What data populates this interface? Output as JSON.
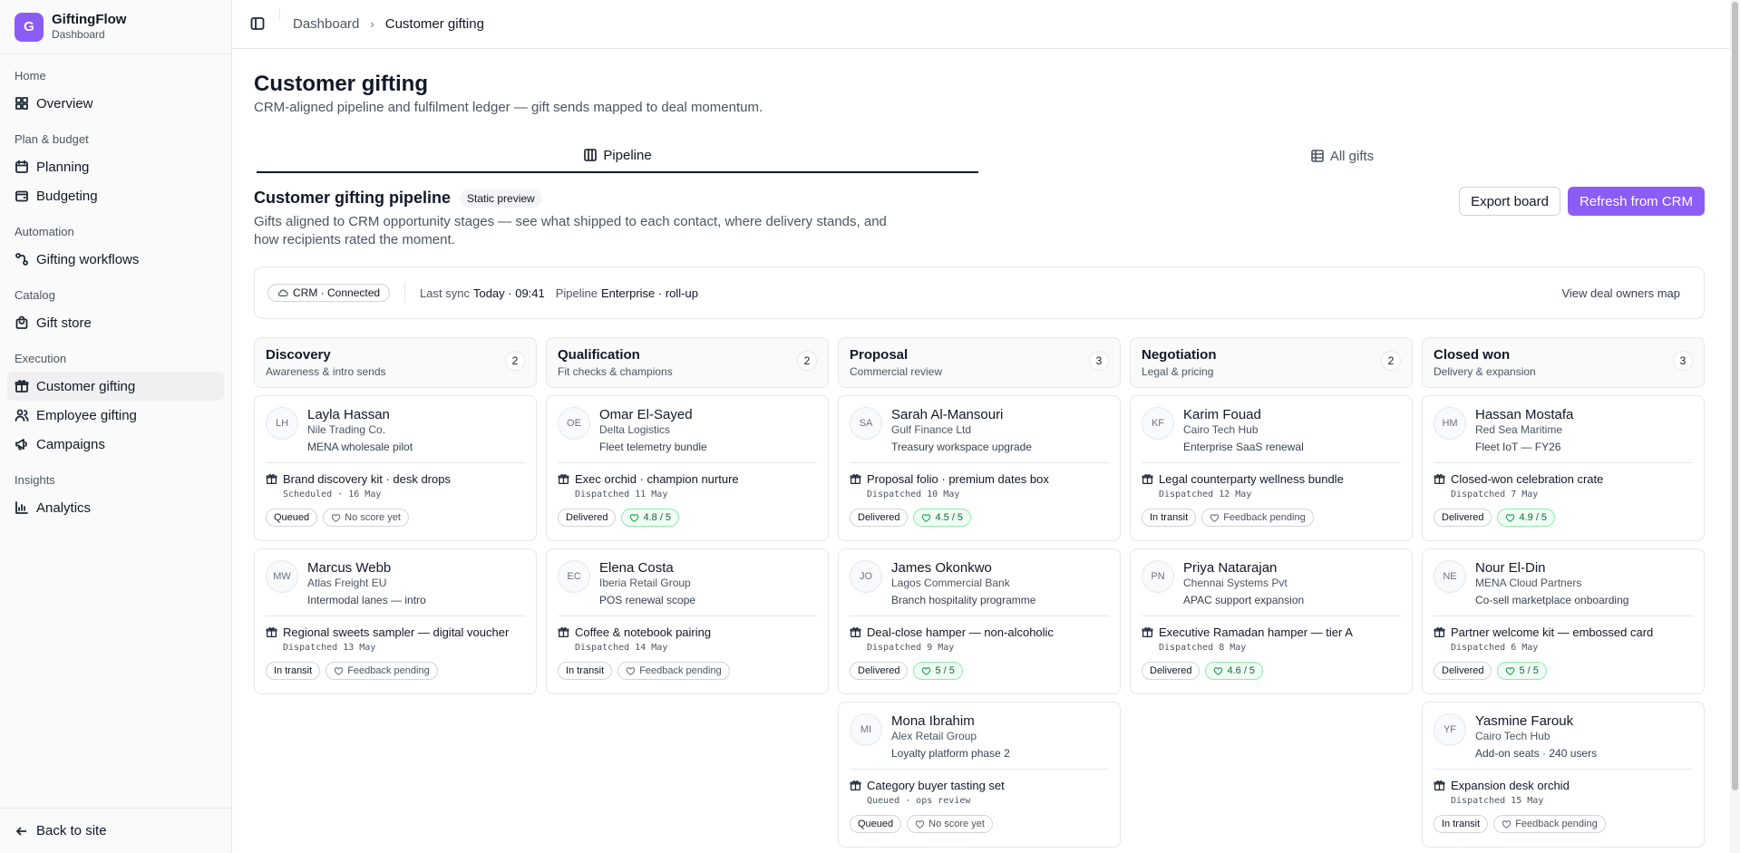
{
  "app": {
    "logo_letter": "G",
    "name": "GiftingFlow",
    "subtitle": "Dashboard"
  },
  "sidebar": {
    "sections": [
      {
        "heading": "Home",
        "items": [
          {
            "label": "Overview",
            "icon": "grid-icon"
          }
        ]
      },
      {
        "heading": "Plan & budget",
        "items": [
          {
            "label": "Planning",
            "icon": "calendar-icon"
          },
          {
            "label": "Budgeting",
            "icon": "wallet-icon"
          }
        ]
      },
      {
        "heading": "Automation",
        "items": [
          {
            "label": "Gifting workflows",
            "icon": "workflow-icon"
          }
        ]
      },
      {
        "heading": "Catalog",
        "items": [
          {
            "label": "Gift store",
            "icon": "shopping-bag-icon"
          }
        ]
      },
      {
        "heading": "Execution",
        "items": [
          {
            "label": "Customer gifting",
            "icon": "gift-icon",
            "active": true
          },
          {
            "label": "Employee gifting",
            "icon": "users-icon"
          },
          {
            "label": "Campaigns",
            "icon": "megaphone-icon"
          }
        ]
      },
      {
        "heading": "Insights",
        "items": [
          {
            "label": "Analytics",
            "icon": "chart-icon"
          }
        ]
      }
    ],
    "back_label": "Back to site"
  },
  "breadcrumb": {
    "root": "Dashboard",
    "current": "Customer gifting"
  },
  "page": {
    "title": "Customer gifting",
    "subtitle": "CRM-aligned pipeline and fulfilment ledger — gift sends mapped to deal momentum."
  },
  "tabs": [
    {
      "label": "Pipeline",
      "icon": "columns-icon",
      "active": true
    },
    {
      "label": "All gifts",
      "icon": "table-icon",
      "active": false
    }
  ],
  "section": {
    "title": "Customer gifting pipeline",
    "pill": "Static preview",
    "desc": "Gifts aligned to CRM opportunity stages — see what shipped to each contact, where delivery stands, and how recipients rated the moment.",
    "export_label": "Export board",
    "refresh_label": "Refresh from CRM"
  },
  "status": {
    "crm": "CRM · Connected",
    "sync_label": "Last sync",
    "sync_value": "Today · 09:41",
    "pipeline_label": "Pipeline",
    "pipeline_value": "Enterprise · roll-up",
    "map_link": "View deal owners map"
  },
  "columns": [
    {
      "name": "Discovery",
      "sub": "Awareness & intro sends",
      "count": "2",
      "cards": [
        {
          "initials": "LH",
          "name": "Layla Hassan",
          "company": "Nile Trading Co.",
          "note": "MENA wholesale pilot",
          "gift": "Brand discovery kit · desk drops",
          "dispatch": "Scheduled · 16 May",
          "status": "Queued",
          "score": "No score yet",
          "scored": false
        },
        {
          "initials": "MW",
          "name": "Marcus Webb",
          "company": "Atlas Freight EU",
          "note": "Intermodal lanes — intro",
          "gift": "Regional sweets sampler — digital voucher",
          "dispatch": "Dispatched 13 May",
          "status": "In transit",
          "score": "Feedback pending",
          "scored": false
        }
      ]
    },
    {
      "name": "Qualification",
      "sub": "Fit checks & champions",
      "count": "2",
      "cards": [
        {
          "initials": "OE",
          "name": "Omar El-Sayed",
          "company": "Delta Logistics",
          "note": "Fleet telemetry bundle",
          "gift": "Exec orchid · champion nurture",
          "dispatch": "Dispatched 11 May",
          "status": "Delivered",
          "score": "4.8 / 5",
          "scored": true
        },
        {
          "initials": "EC",
          "name": "Elena Costa",
          "company": "Iberia Retail Group",
          "note": "POS renewal scope",
          "gift": "Coffee & notebook pairing",
          "dispatch": "Dispatched 14 May",
          "status": "In transit",
          "score": "Feedback pending",
          "scored": false
        }
      ]
    },
    {
      "name": "Proposal",
      "sub": "Commercial review",
      "count": "3",
      "cards": [
        {
          "initials": "SA",
          "name": "Sarah Al-Mansouri",
          "company": "Gulf Finance Ltd",
          "note": "Treasury workspace upgrade",
          "gift": "Proposal folio · premium dates box",
          "dispatch": "Dispatched 10 May",
          "status": "Delivered",
          "score": "4.5 / 5",
          "scored": true
        },
        {
          "initials": "JO",
          "name": "James Okonkwo",
          "company": "Lagos Commercial Bank",
          "note": "Branch hospitality programme",
          "gift": "Deal-close hamper — non-alcoholic",
          "dispatch": "Dispatched 9 May",
          "status": "Delivered",
          "score": "5 / 5",
          "scored": true
        },
        {
          "initials": "MI",
          "name": "Mona Ibrahim",
          "company": "Alex Retail Group",
          "note": "Loyalty platform phase 2",
          "gift": "Category buyer tasting set",
          "dispatch": "Queued · ops review",
          "status": "Queued",
          "score": "No score yet",
          "scored": false
        }
      ]
    },
    {
      "name": "Negotiation",
      "sub": "Legal & pricing",
      "count": "2",
      "cards": [
        {
          "initials": "KF",
          "name": "Karim Fouad",
          "company": "Cairo Tech Hub",
          "note": "Enterprise SaaS renewal",
          "gift": "Legal counterparty wellness bundle",
          "dispatch": "Dispatched 12 May",
          "status": "In transit",
          "score": "Feedback pending",
          "scored": false
        },
        {
          "initials": "PN",
          "name": "Priya Natarajan",
          "company": "Chennai Systems Pvt",
          "note": "APAC support expansion",
          "gift": "Executive Ramadan hamper — tier A",
          "dispatch": "Dispatched 8 May",
          "status": "Delivered",
          "score": "4.6 / 5",
          "scored": true
        }
      ]
    },
    {
      "name": "Closed won",
      "sub": "Delivery & expansion",
      "count": "3",
      "cards": [
        {
          "initials": "HM",
          "name": "Hassan Mostafa",
          "company": "Red Sea Maritime",
          "note": "Fleet IoT — FY26",
          "gift": "Closed-won celebration crate",
          "dispatch": "Dispatched 7 May",
          "status": "Delivered",
          "score": "4.9 / 5",
          "scored": true
        },
        {
          "initials": "NE",
          "name": "Nour El-Din",
          "company": "MENA Cloud Partners",
          "note": "Co-sell marketplace onboarding",
          "gift": "Partner welcome kit — embossed card",
          "dispatch": "Dispatched 6 May",
          "status": "Delivered",
          "score": "5 / 5",
          "scored": true
        },
        {
          "initials": "YF",
          "name": "Yasmine Farouk",
          "company": "Cairo Tech Hub",
          "note": "Add-on seats · 240 users",
          "gift": "Expansion desk orchid",
          "dispatch": "Dispatched 15 May",
          "status": "In transit",
          "score": "Feedback pending",
          "scored": false
        }
      ]
    }
  ],
  "colors": {
    "accent": "#8b5cf6",
    "score_bg": "#f0fdf4",
    "score_border": "#86efac"
  }
}
